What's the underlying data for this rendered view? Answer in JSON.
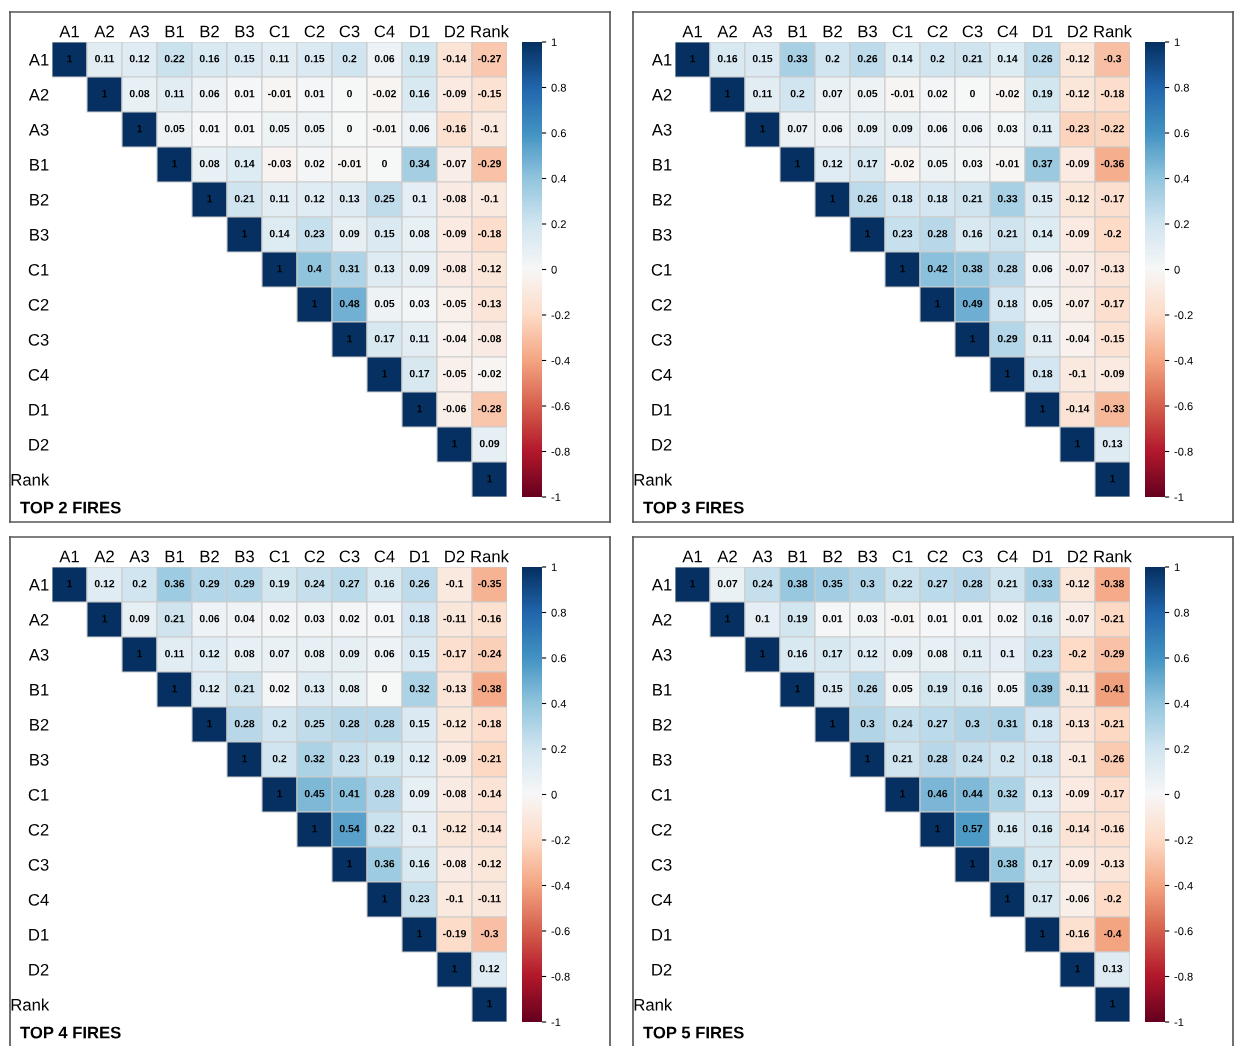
{
  "chart_data": [
    {
      "type": "heatmap",
      "title": "TOP 2 FIRES",
      "categories": [
        "A1",
        "A2",
        "A3",
        "B1",
        "B2",
        "B3",
        "C1",
        "C2",
        "C3",
        "C4",
        "D1",
        "D2",
        "Rank"
      ],
      "y_categories": [
        "A1",
        "A2",
        "A3",
        "B1",
        "B2",
        "B3",
        "C1",
        "C2",
        "C3",
        "C4",
        "D1",
        "D2",
        "Rank"
      ],
      "clim": [
        -1,
        1
      ],
      "cticks": [
        -1,
        -0.8,
        -0.6,
        -0.4,
        -0.2,
        0,
        0.2,
        0.4,
        0.6,
        0.8,
        1
      ],
      "data_labels": true,
      "cells": [
        [
          1,
          0.11,
          0.12,
          0.22,
          0.16,
          0.15,
          0.11,
          0.15,
          0.2,
          0.06,
          0.19,
          -0.14,
          -0.27
        ],
        [
          null,
          1,
          0.08,
          0.11,
          0.06,
          0.01,
          -0.01,
          0.01,
          0,
          -0.02,
          0.16,
          -0.09,
          -0.15
        ],
        [
          null,
          null,
          1,
          0.05,
          0.01,
          0.01,
          0.05,
          0.05,
          0,
          -0.01,
          0.06,
          -0.16,
          -0.1
        ],
        [
          null,
          null,
          null,
          1,
          0.08,
          0.14,
          -0.03,
          0.02,
          -0.01,
          0,
          0.34,
          -0.07,
          -0.29
        ],
        [
          null,
          null,
          null,
          null,
          1,
          0.21,
          0.11,
          0.12,
          0.13,
          0.25,
          0.1,
          -0.08,
          -0.1
        ],
        [
          null,
          null,
          null,
          null,
          null,
          1,
          0.14,
          0.23,
          0.09,
          0.15,
          0.08,
          -0.09,
          -0.18
        ],
        [
          null,
          null,
          null,
          null,
          null,
          null,
          1,
          0.4,
          0.31,
          0.13,
          0.09,
          -0.08,
          -0.12
        ],
        [
          null,
          null,
          null,
          null,
          null,
          null,
          null,
          1,
          0.48,
          0.05,
          0.03,
          -0.05,
          -0.13
        ],
        [
          null,
          null,
          null,
          null,
          null,
          null,
          null,
          null,
          1,
          0.17,
          0.11,
          -0.04,
          -0.08
        ],
        [
          null,
          null,
          null,
          null,
          null,
          null,
          null,
          null,
          null,
          1,
          0.17,
          -0.05,
          -0.02
        ],
        [
          null,
          null,
          null,
          null,
          null,
          null,
          null,
          null,
          null,
          null,
          1,
          -0.06,
          -0.28
        ],
        [
          null,
          null,
          null,
          null,
          null,
          null,
          null,
          null,
          null,
          null,
          null,
          1,
          0.09
        ],
        [
          null,
          null,
          null,
          null,
          null,
          null,
          null,
          null,
          null,
          null,
          null,
          null,
          1
        ]
      ]
    },
    {
      "type": "heatmap",
      "title": "TOP 3 FIRES",
      "categories": [
        "A1",
        "A2",
        "A3",
        "B1",
        "B2",
        "B3",
        "C1",
        "C2",
        "C3",
        "C4",
        "D1",
        "D2",
        "Rank"
      ],
      "y_categories": [
        "A1",
        "A2",
        "A3",
        "B1",
        "B2",
        "B3",
        "C1",
        "C2",
        "C3",
        "C4",
        "D1",
        "D2",
        "Rank"
      ],
      "clim": [
        -1,
        1
      ],
      "cticks": [
        -1,
        -0.8,
        -0.6,
        -0.4,
        -0.2,
        0,
        0.2,
        0.4,
        0.6,
        0.8,
        1
      ],
      "data_labels": true,
      "cells": [
        [
          1,
          0.16,
          0.15,
          0.33,
          0.2,
          0.26,
          0.14,
          0.2,
          0.21,
          0.14,
          0.26,
          -0.12,
          -0.3
        ],
        [
          null,
          1,
          0.11,
          0.2,
          0.07,
          0.05,
          -0.01,
          0.02,
          0,
          -0.02,
          0.19,
          -0.12,
          -0.18
        ],
        [
          null,
          null,
          1,
          0.07,
          0.06,
          0.09,
          0.09,
          0.06,
          0.06,
          0.03,
          0.11,
          -0.23,
          -0.22
        ],
        [
          null,
          null,
          null,
          1,
          0.12,
          0.17,
          -0.02,
          0.05,
          0.03,
          -0.01,
          0.37,
          -0.09,
          -0.36
        ],
        [
          null,
          null,
          null,
          null,
          1,
          0.26,
          0.18,
          0.18,
          0.21,
          0.33,
          0.15,
          -0.12,
          -0.17
        ],
        [
          null,
          null,
          null,
          null,
          null,
          1,
          0.23,
          0.28,
          0.16,
          0.21,
          0.14,
          -0.09,
          -0.2
        ],
        [
          null,
          null,
          null,
          null,
          null,
          null,
          1,
          0.42,
          0.38,
          0.28,
          0.06,
          -0.07,
          -0.13
        ],
        [
          null,
          null,
          null,
          null,
          null,
          null,
          null,
          1,
          0.49,
          0.18,
          0.05,
          -0.07,
          -0.17
        ],
        [
          null,
          null,
          null,
          null,
          null,
          null,
          null,
          null,
          1,
          0.29,
          0.11,
          -0.04,
          -0.15
        ],
        [
          null,
          null,
          null,
          null,
          null,
          null,
          null,
          null,
          null,
          1,
          0.18,
          -0.1,
          -0.09
        ],
        [
          null,
          null,
          null,
          null,
          null,
          null,
          null,
          null,
          null,
          null,
          1,
          -0.14,
          -0.33
        ],
        [
          null,
          null,
          null,
          null,
          null,
          null,
          null,
          null,
          null,
          null,
          null,
          1,
          0.13
        ],
        [
          null,
          null,
          null,
          null,
          null,
          null,
          null,
          null,
          null,
          null,
          null,
          null,
          1
        ]
      ]
    },
    {
      "type": "heatmap",
      "title": "TOP 4 FIRES",
      "categories": [
        "A1",
        "A2",
        "A3",
        "B1",
        "B2",
        "B3",
        "C1",
        "C2",
        "C3",
        "C4",
        "D1",
        "D2",
        "Rank"
      ],
      "y_categories": [
        "A1",
        "A2",
        "A3",
        "B1",
        "B2",
        "B3",
        "C1",
        "C2",
        "C3",
        "C4",
        "D1",
        "D2",
        "Rank"
      ],
      "clim": [
        -1,
        1
      ],
      "cticks": [
        -1,
        -0.8,
        -0.6,
        -0.4,
        -0.2,
        0,
        0.2,
        0.4,
        0.6,
        0.8,
        1
      ],
      "data_labels": true,
      "cells": [
        [
          1,
          0.12,
          0.2,
          0.36,
          0.29,
          0.29,
          0.19,
          0.24,
          0.27,
          0.16,
          0.26,
          -0.1,
          -0.35
        ],
        [
          null,
          1,
          0.09,
          0.21,
          0.06,
          0.04,
          0.02,
          0.03,
          0.02,
          0.01,
          0.18,
          -0.11,
          -0.16
        ],
        [
          null,
          null,
          1,
          0.11,
          0.12,
          0.08,
          0.07,
          0.08,
          0.09,
          0.06,
          0.15,
          -0.17,
          -0.24
        ],
        [
          null,
          null,
          null,
          1,
          0.12,
          0.21,
          0.02,
          0.13,
          0.08,
          0,
          0.32,
          -0.13,
          -0.38
        ],
        [
          null,
          null,
          null,
          null,
          1,
          0.28,
          0.2,
          0.25,
          0.28,
          0.28,
          0.15,
          -0.12,
          -0.18
        ],
        [
          null,
          null,
          null,
          null,
          null,
          1,
          0.2,
          0.32,
          0.23,
          0.19,
          0.12,
          -0.09,
          -0.21
        ],
        [
          null,
          null,
          null,
          null,
          null,
          null,
          1,
          0.45,
          0.41,
          0.28,
          0.09,
          -0.08,
          -0.14
        ],
        [
          null,
          null,
          null,
          null,
          null,
          null,
          null,
          1,
          0.54,
          0.22,
          0.1,
          -0.12,
          -0.14
        ],
        [
          null,
          null,
          null,
          null,
          null,
          null,
          null,
          null,
          1,
          0.36,
          0.16,
          -0.08,
          -0.12
        ],
        [
          null,
          null,
          null,
          null,
          null,
          null,
          null,
          null,
          null,
          1,
          0.23,
          -0.1,
          -0.11
        ],
        [
          null,
          null,
          null,
          null,
          null,
          null,
          null,
          null,
          null,
          null,
          1,
          -0.19,
          -0.3
        ],
        [
          null,
          null,
          null,
          null,
          null,
          null,
          null,
          null,
          null,
          null,
          null,
          1,
          0.12
        ],
        [
          null,
          null,
          null,
          null,
          null,
          null,
          null,
          null,
          null,
          null,
          null,
          null,
          1
        ]
      ]
    },
    {
      "type": "heatmap",
      "title": "TOP 5 FIRES",
      "categories": [
        "A1",
        "A2",
        "A3",
        "B1",
        "B2",
        "B3",
        "C1",
        "C2",
        "C3",
        "C4",
        "D1",
        "D2",
        "Rank"
      ],
      "y_categories": [
        "A1",
        "A2",
        "A3",
        "B1",
        "B2",
        "B3",
        "C1",
        "C2",
        "C3",
        "C4",
        "D1",
        "D2",
        "Rank"
      ],
      "clim": [
        -1,
        1
      ],
      "cticks": [
        -1,
        -0.8,
        -0.6,
        -0.4,
        -0.2,
        0,
        0.2,
        0.4,
        0.6,
        0.8,
        1
      ],
      "data_labels": true,
      "cells": [
        [
          1,
          0.07,
          0.24,
          0.38,
          0.35,
          0.3,
          0.22,
          0.27,
          0.28,
          0.21,
          0.33,
          -0.12,
          -0.38
        ],
        [
          null,
          1,
          0.1,
          0.19,
          0.01,
          0.03,
          -0.01,
          0.01,
          0.01,
          0.02,
          0.16,
          -0.07,
          -0.21
        ],
        [
          null,
          null,
          1,
          0.16,
          0.17,
          0.12,
          0.09,
          0.08,
          0.11,
          0.1,
          0.23,
          -0.2,
          -0.29
        ],
        [
          null,
          null,
          null,
          1,
          0.15,
          0.26,
          0.05,
          0.19,
          0.16,
          0.05,
          0.39,
          -0.11,
          -0.41
        ],
        [
          null,
          null,
          null,
          null,
          1,
          0.3,
          0.24,
          0.27,
          0.3,
          0.31,
          0.18,
          -0.13,
          -0.21
        ],
        [
          null,
          null,
          null,
          null,
          null,
          1,
          0.21,
          0.28,
          0.24,
          0.2,
          0.18,
          -0.1,
          -0.26
        ],
        [
          null,
          null,
          null,
          null,
          null,
          null,
          1,
          0.46,
          0.44,
          0.32,
          0.13,
          -0.09,
          -0.17
        ],
        [
          null,
          null,
          null,
          null,
          null,
          null,
          null,
          1,
          0.57,
          0.16,
          0.16,
          -0.14,
          -0.16
        ],
        [
          null,
          null,
          null,
          null,
          null,
          null,
          null,
          null,
          1,
          0.38,
          0.17,
          -0.09,
          -0.13
        ],
        [
          null,
          null,
          null,
          null,
          null,
          null,
          null,
          null,
          null,
          1,
          0.17,
          -0.06,
          -0.2
        ],
        [
          null,
          null,
          null,
          null,
          null,
          null,
          null,
          null,
          null,
          null,
          1,
          -0.16,
          -0.4
        ],
        [
          null,
          null,
          null,
          null,
          null,
          null,
          null,
          null,
          null,
          null,
          null,
          1,
          0.13
        ],
        [
          null,
          null,
          null,
          null,
          null,
          null,
          null,
          null,
          null,
          null,
          null,
          null,
          1
        ]
      ]
    }
  ]
}
